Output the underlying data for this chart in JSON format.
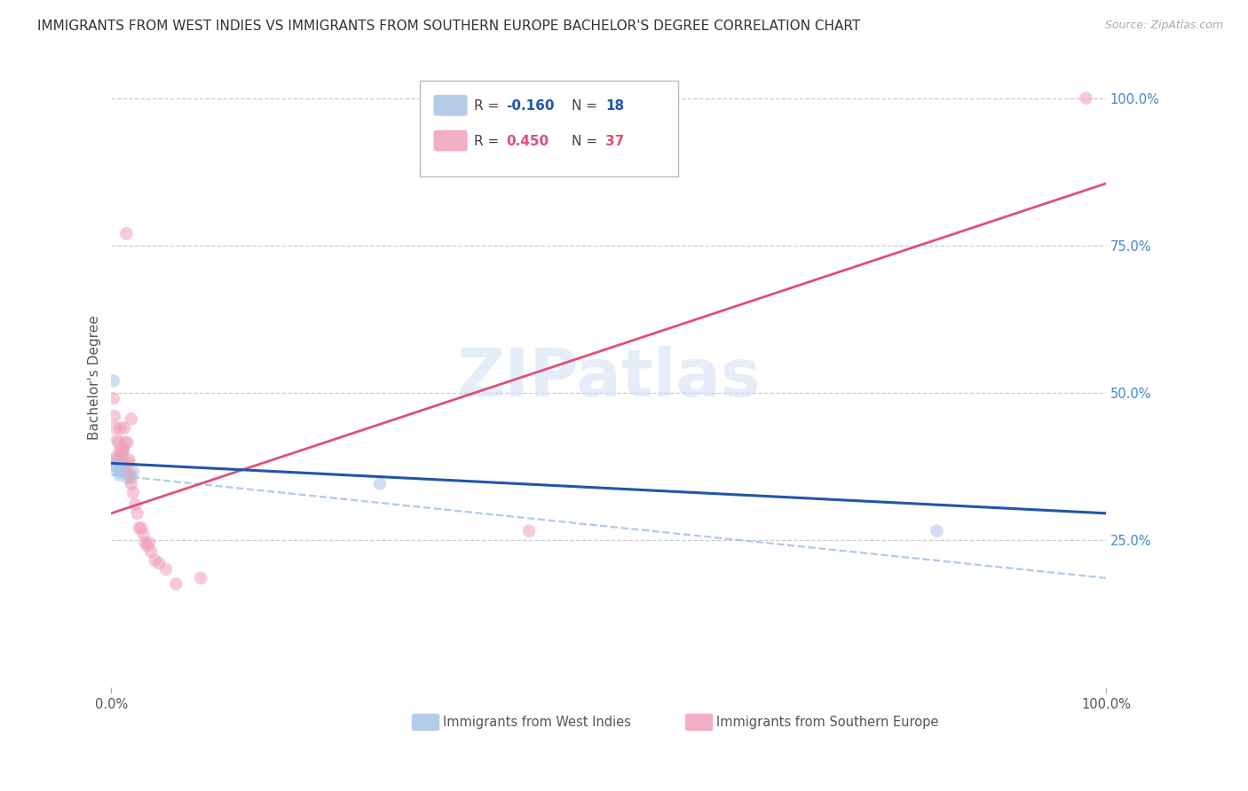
{
  "title": "IMMIGRANTS FROM WEST INDIES VS IMMIGRANTS FROM SOUTHERN EUROPE BACHELOR'S DEGREE CORRELATION CHART",
  "source": "Source: ZipAtlas.com",
  "ylabel": "Bachelor's Degree",
  "legend_label_1": "Immigrants from West Indies",
  "legend_label_2": "Immigrants from Southern Europe",
  "west_indies_color": "#a8c4e8",
  "southern_europe_color": "#f0a0b8",
  "trend_wi_solid_color": "#2255aa",
  "trend_wi_dash_color": "#a8c4e8",
  "trend_se_color": "#e05075",
  "right_tick_color": "#4488cc",
  "watermark": "ZIPatlas",
  "background_color": "#ffffff",
  "wi_x": [
    0.003,
    0.004,
    0.005,
    0.006,
    0.007,
    0.008,
    0.009,
    0.01,
    0.011,
    0.012,
    0.014,
    0.016,
    0.018,
    0.02,
    0.022,
    0.002,
    0.27,
    0.83
  ],
  "wi_y": [
    0.385,
    0.375,
    0.37,
    0.375,
    0.385,
    0.36,
    0.365,
    0.37,
    0.38,
    0.4,
    0.375,
    0.355,
    0.36,
    0.355,
    0.365,
    0.52,
    0.345,
    0.265
  ],
  "se_x": [
    0.002,
    0.003,
    0.004,
    0.005,
    0.006,
    0.007,
    0.008,
    0.009,
    0.01,
    0.011,
    0.012,
    0.013,
    0.014,
    0.015,
    0.016,
    0.017,
    0.018,
    0.019,
    0.02,
    0.022,
    0.024,
    0.026,
    0.028,
    0.03,
    0.032,
    0.034,
    0.036,
    0.038,
    0.04,
    0.044,
    0.048,
    0.055,
    0.065,
    0.09,
    0.02,
    0.42,
    0.98
  ],
  "se_y": [
    0.49,
    0.46,
    0.44,
    0.39,
    0.42,
    0.415,
    0.4,
    0.44,
    0.4,
    0.395,
    0.405,
    0.44,
    0.415,
    0.77,
    0.415,
    0.38,
    0.385,
    0.36,
    0.345,
    0.33,
    0.31,
    0.295,
    0.27,
    0.27,
    0.26,
    0.245,
    0.24,
    0.245,
    0.23,
    0.215,
    0.21,
    0.2,
    0.175,
    0.185,
    0.455,
    0.265,
    1.0
  ],
  "trend_wi_x0": 0.0,
  "trend_wi_x1": 1.0,
  "trend_wi_y0": 0.38,
  "trend_wi_y1": 0.295,
  "trend_se_x0": 0.0,
  "trend_se_x1": 1.0,
  "trend_se_y0": 0.295,
  "trend_se_y1": 0.855,
  "trend_wi_dash_y0": 0.36,
  "trend_wi_dash_y1": 0.185,
  "xlim": [
    0.0,
    1.0
  ],
  "ylim": [
    0.0,
    1.05
  ],
  "ytick_vals": [
    0.25,
    0.5,
    0.75,
    1.0
  ],
  "ytick_labels": [
    "25.0%",
    "50.0%",
    "75.0%",
    "100.0%"
  ],
  "xtick_vals": [
    0.0,
    1.0
  ],
  "xtick_labels": [
    "0.0%",
    "100.0%"
  ],
  "marker_size": 110,
  "marker_alpha": 0.55
}
